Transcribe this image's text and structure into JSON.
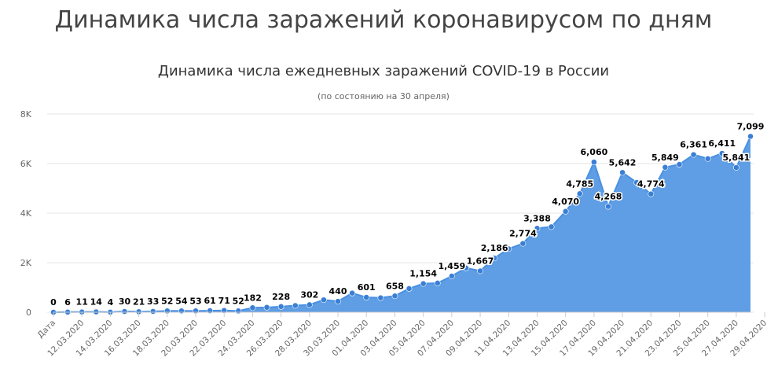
{
  "page": {
    "title": "Динамика числа заражений коронавирусом по дням"
  },
  "chart_data": {
    "type": "area",
    "title": "Динамика числа ежедневных заражений COVID-19 в России",
    "subtitle": "(по состоянию на 30 апреля)",
    "xlabel": "",
    "ylabel": "",
    "ylim": [
      0,
      8000
    ],
    "y_ticks": [
      "0",
      "2K",
      "4K",
      "6K",
      "8K"
    ],
    "grid": true,
    "legend": "none",
    "color": "#4a90e2",
    "fill_color": "#5f9ee4",
    "x_labels": [
      "Дата",
      "12.03.2020",
      "14.03.2020",
      "16.03.2020",
      "18.03.2020",
      "20.03.2020",
      "22.03.2020",
      "24.03.2020",
      "26.03.2020",
      "28.03.2020",
      "30.03.2020",
      "01.04.2020",
      "03.04.2020",
      "05.04.2020",
      "07.04.2020",
      "09.04.2020",
      "11.04.2020",
      "13.04.2020",
      "15.04.2020",
      "17.04.2020",
      "19.04.2020",
      "21.04.2020",
      "23.04.2020",
      "25.04.2020",
      "27.04.2020",
      "29.04.2020"
    ],
    "x_label_indices": [
      0,
      2,
      4,
      6,
      8,
      10,
      12,
      14,
      16,
      18,
      20,
      22,
      24,
      26,
      28,
      30,
      32,
      34,
      36,
      38,
      40,
      42,
      44,
      46,
      48,
      50
    ],
    "values": [
      0,
      6,
      11,
      14,
      4,
      30,
      21,
      33,
      52,
      54,
      53,
      61,
      71,
      52,
      182,
      196,
      228,
      270,
      302,
      500,
      440,
      771,
      601,
      582,
      658,
      954,
      1154,
      1175,
      1459,
      1786,
      1667,
      2186,
      2558,
      2774,
      3388,
      3448,
      4070,
      4785,
      6060,
      4268,
      5642,
      5236,
      4774,
      5849,
      5966,
      6361,
      6198,
      6411,
      5841,
      7099
    ],
    "data_labels": [
      "0",
      "6",
      "11",
      "14",
      "4",
      "30",
      "21",
      "33",
      "52",
      "54",
      "53",
      "61",
      "71",
      "52",
      "182",
      "",
      "228",
      "",
      "302",
      "",
      "440",
      "",
      "601",
      "",
      "658",
      "",
      "1,154",
      "",
      "1,459",
      "",
      "1,667",
      "2,186",
      "",
      "2,774",
      "3,388",
      "",
      "4,070",
      "4,785",
      "6,060",
      "4,268",
      "5,642",
      "",
      "4,774",
      "5,849",
      "",
      "6,361",
      "",
      "6,411",
      "5,841",
      "7,099"
    ]
  }
}
